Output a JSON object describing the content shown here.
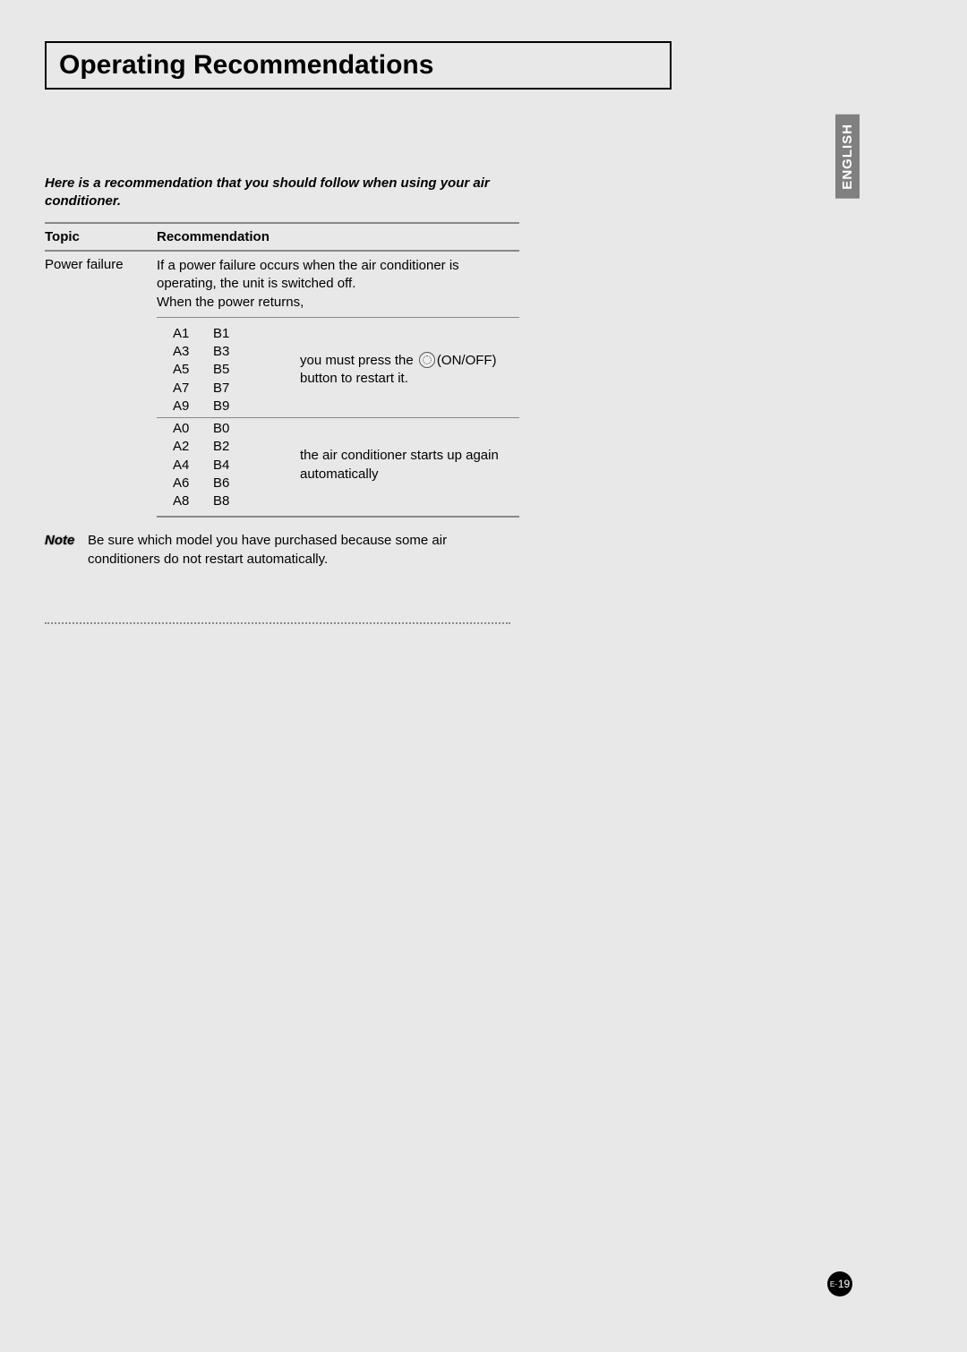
{
  "title": "Operating Recommendations",
  "side_tab": "ENGLISH",
  "intro": "Here is a recommendation that you should follow when using your air conditioner.",
  "table": {
    "headers": {
      "topic": "Topic",
      "recommendation": "Recommendation"
    },
    "topic_value": "Power failure",
    "rec_intro": "If a power failure occurs when the air conditioner is operating, the unit is switched off.\nWhen the power returns,",
    "group1": {
      "codes": [
        [
          "A1",
          "B1"
        ],
        [
          "A3",
          "B3"
        ],
        [
          "A5",
          "B5"
        ],
        [
          "A7",
          "B7"
        ],
        [
          "A9",
          "B9"
        ]
      ],
      "desc_pre": "you must press the ",
      "desc_onoff": "(ON/OFF)",
      "desc_post": " button to restart it."
    },
    "group2": {
      "codes": [
        [
          "A0",
          "B0"
        ],
        [
          "A2",
          "B2"
        ],
        [
          "A4",
          "B4"
        ],
        [
          "A6",
          "B6"
        ],
        [
          "A8",
          "B8"
        ]
      ],
      "desc": "the air conditioner starts up again automatically"
    }
  },
  "note": {
    "label": "Note",
    "text": "Be sure which model you have purchased because some air conditioners do not restart automatically."
  },
  "page_number": {
    "prefix": "E-",
    "num": "19"
  },
  "colors": {
    "page_bg": "#e8e8e8",
    "border": "#000000",
    "rule": "#888888",
    "tab_bg": "#808080"
  }
}
